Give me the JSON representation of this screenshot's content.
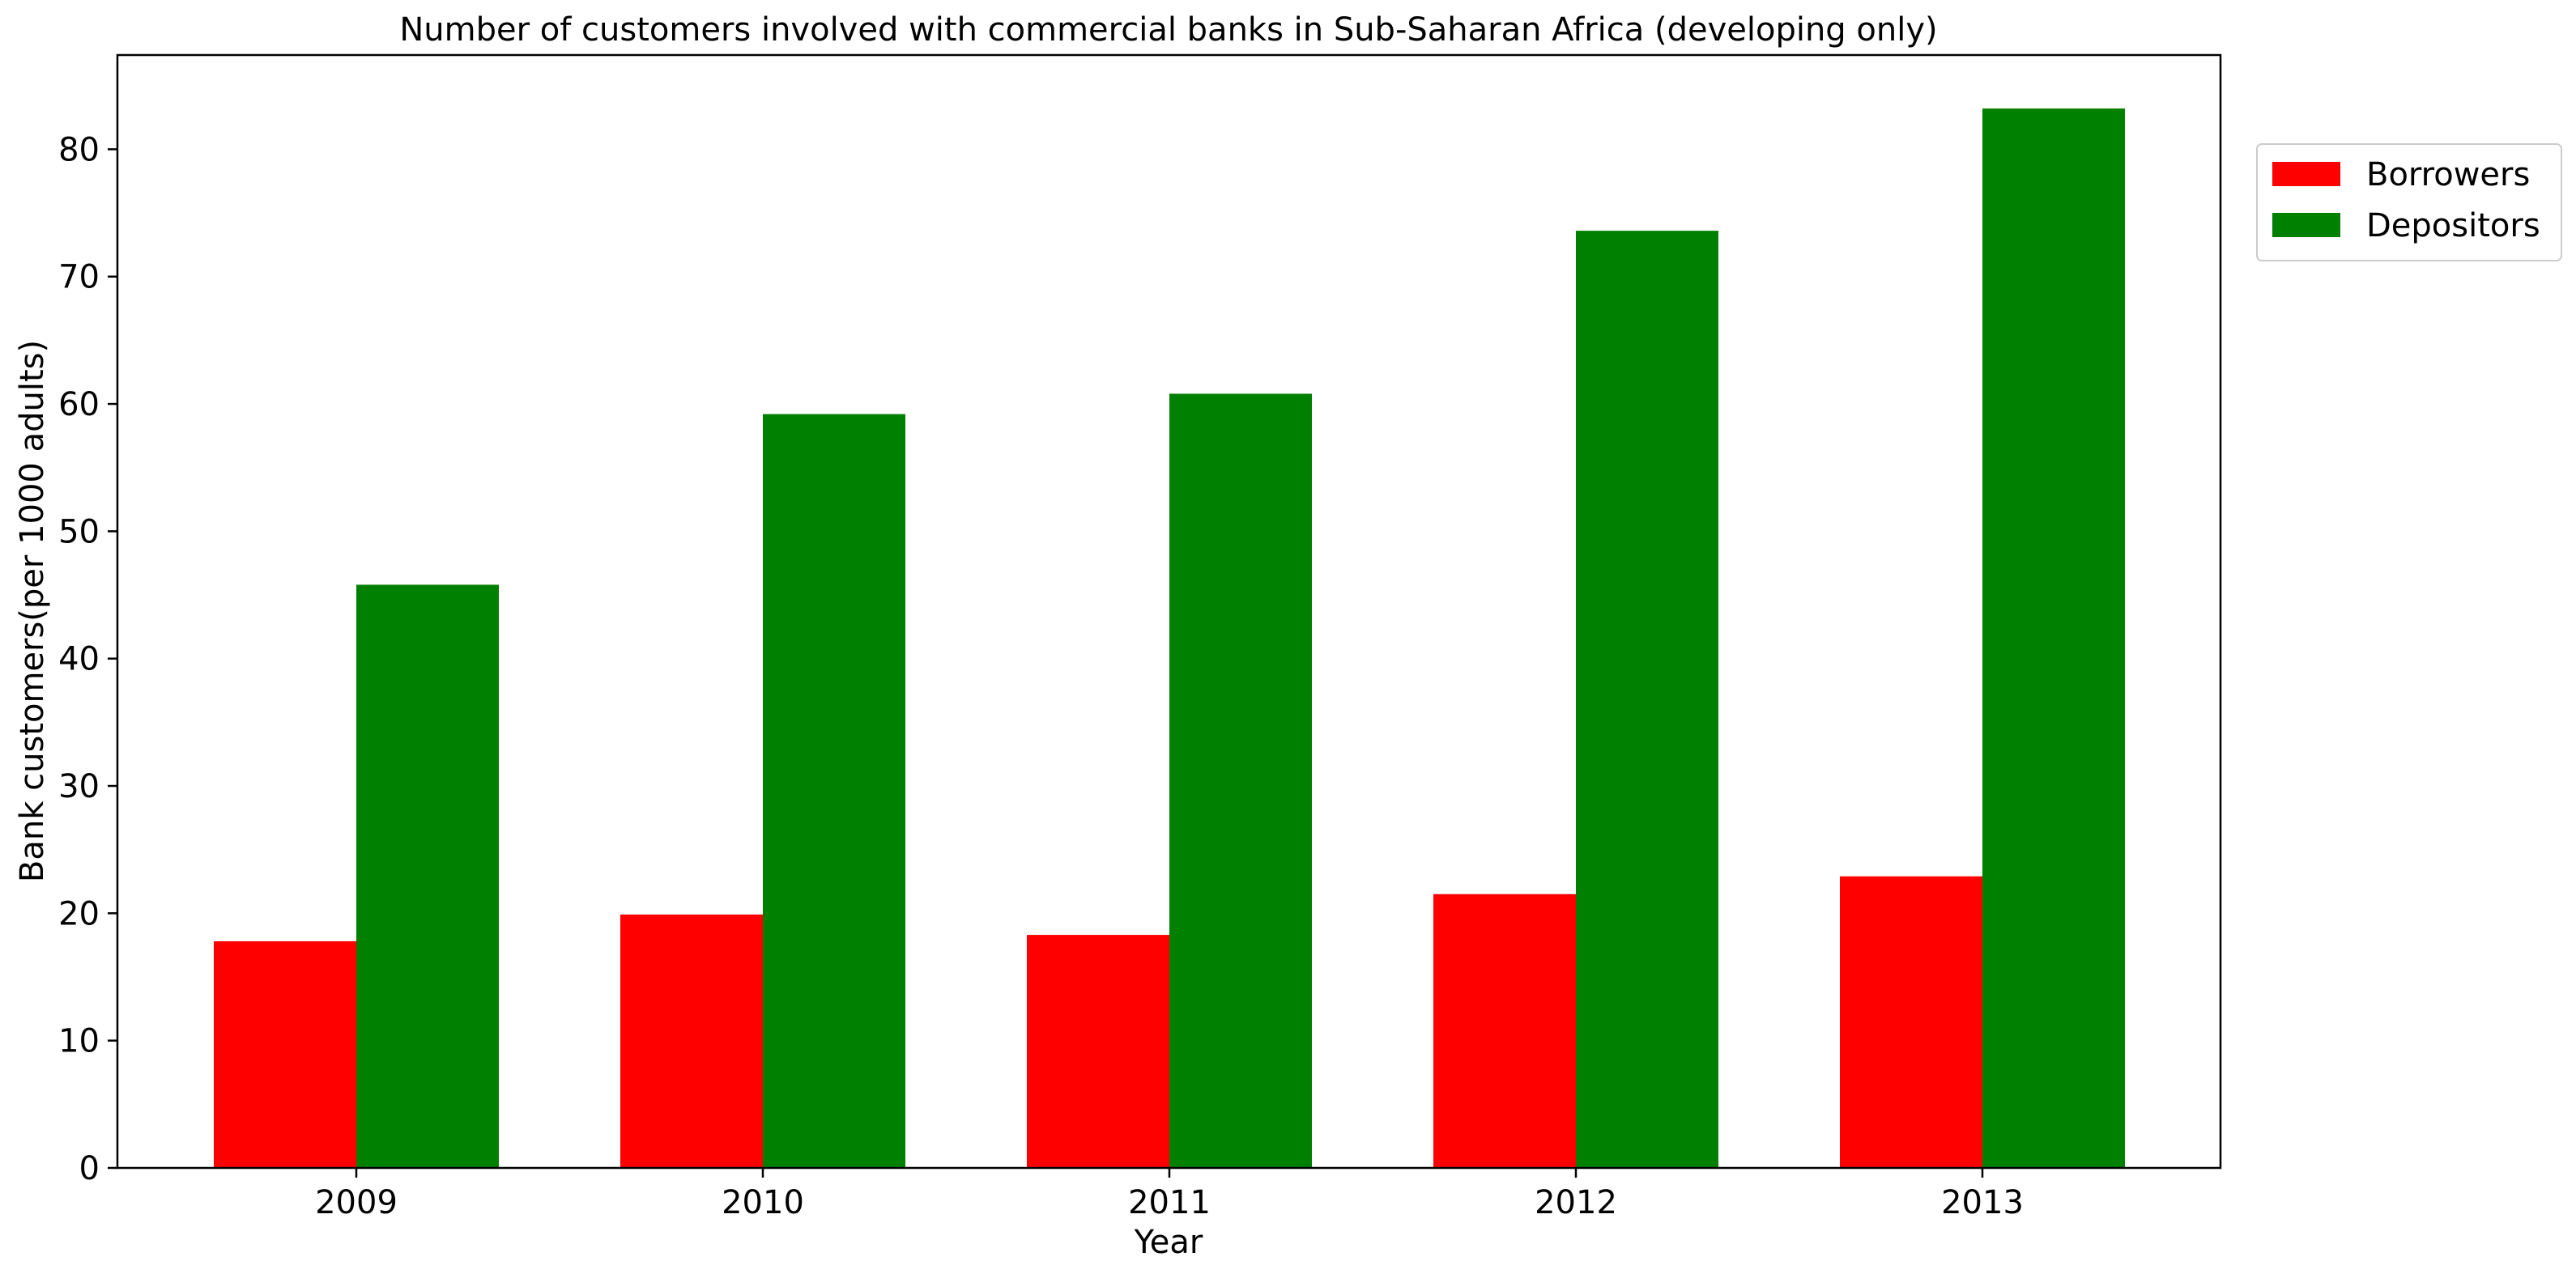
{
  "chart_data": {
    "type": "bar",
    "title": "Number of customers involved with commercial banks in Sub-Saharan Africa (developing only)",
    "xlabel": "Year",
    "ylabel": "Bank customers(per 1000 adults)",
    "categories": [
      "2009",
      "2010",
      "2011",
      "2012",
      "2013"
    ],
    "series": [
      {
        "name": "Borrowers",
        "color": "#ff0000",
        "values": [
          17.8,
          19.9,
          18.3,
          21.5,
          22.9
        ]
      },
      {
        "name": "Depositors",
        "color": "#008000",
        "values": [
          45.8,
          59.2,
          60.8,
          73.6,
          83.2
        ]
      }
    ],
    "ylim": [
      0,
      87.4
    ],
    "yticks": [
      0,
      10,
      20,
      30,
      40,
      50,
      60,
      70,
      80
    ],
    "grid": false,
    "legend": "right, outside plot"
  }
}
